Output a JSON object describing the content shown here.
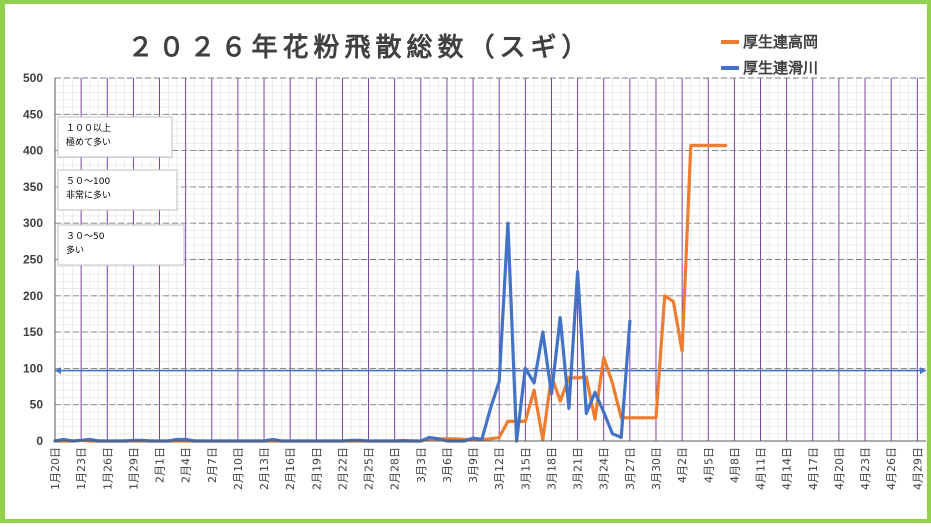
{
  "chart_data": {
    "type": "line",
    "title": "２０２６年花粉飛散総数（スギ）",
    "ylim": [
      0,
      500
    ],
    "yticks": [
      0,
      50,
      100,
      150,
      200,
      250,
      300,
      350,
      400,
      450,
      500
    ],
    "x_tick_labels": [
      "1月20日",
      "1月23日",
      "1月26日",
      "1月29日",
      "2月1日",
      "2月4日",
      "2月7日",
      "2月10日",
      "2月13日",
      "2月16日",
      "2月19日",
      "2月22日",
      "2月25日",
      "2月28日",
      "3月3日",
      "3月6日",
      "3月9日",
      "3月12日",
      "3月15日",
      "3月18日",
      "3月21日",
      "3月24日",
      "3月27日",
      "3月30日",
      "4月2日",
      "4月5日",
      "4月8日",
      "4月11日",
      "4月14日",
      "4月17日",
      "4月20日",
      "4月23日",
      "4月26日",
      "4月29日"
    ],
    "reference_line": 97,
    "annotations": [
      {
        "line1": "１００以上",
        "line2": "極めて多い"
      },
      {
        "line1": "５０～100",
        "line2": "非常に多い"
      },
      {
        "line1": "３０～50",
        "line2": "多い"
      }
    ],
    "series": [
      {
        "name": "厚生連高岡",
        "color": "#ed7d31",
        "values": [
          0,
          0,
          0,
          1,
          0,
          0,
          0,
          0,
          0,
          0,
          0,
          0,
          0,
          0,
          0,
          0,
          0,
          0,
          0,
          0,
          0,
          0,
          0,
          0,
          0,
          0,
          0,
          0,
          0,
          0,
          0,
          0,
          0,
          0,
          0,
          0,
          0,
          0,
          0,
          0,
          1,
          0,
          0,
          3,
          3,
          3,
          3,
          2,
          2,
          2,
          3,
          5,
          27,
          27,
          27,
          70,
          2,
          90,
          55,
          87,
          87,
          88,
          30,
          115,
          80,
          32,
          32,
          32,
          32,
          32,
          200,
          192,
          124,
          407,
          407,
          407,
          407,
          407
        ]
      },
      {
        "name": "厚生連滑川",
        "color": "#4472c4",
        "values": [
          0,
          2,
          0,
          1,
          2,
          0,
          0,
          0,
          0,
          1,
          1,
          0,
          0,
          0,
          2,
          2,
          0,
          0,
          0,
          0,
          0,
          0,
          0,
          0,
          0,
          2,
          0,
          0,
          0,
          0,
          0,
          0,
          0,
          0,
          1,
          1,
          0,
          0,
          0,
          0,
          0,
          0,
          0,
          5,
          3,
          0,
          0,
          0,
          4,
          2,
          45,
          82,
          300,
          0,
          100,
          80,
          150,
          65,
          170,
          45,
          233,
          38,
          67,
          40,
          10,
          5,
          165
        ]
      }
    ]
  }
}
